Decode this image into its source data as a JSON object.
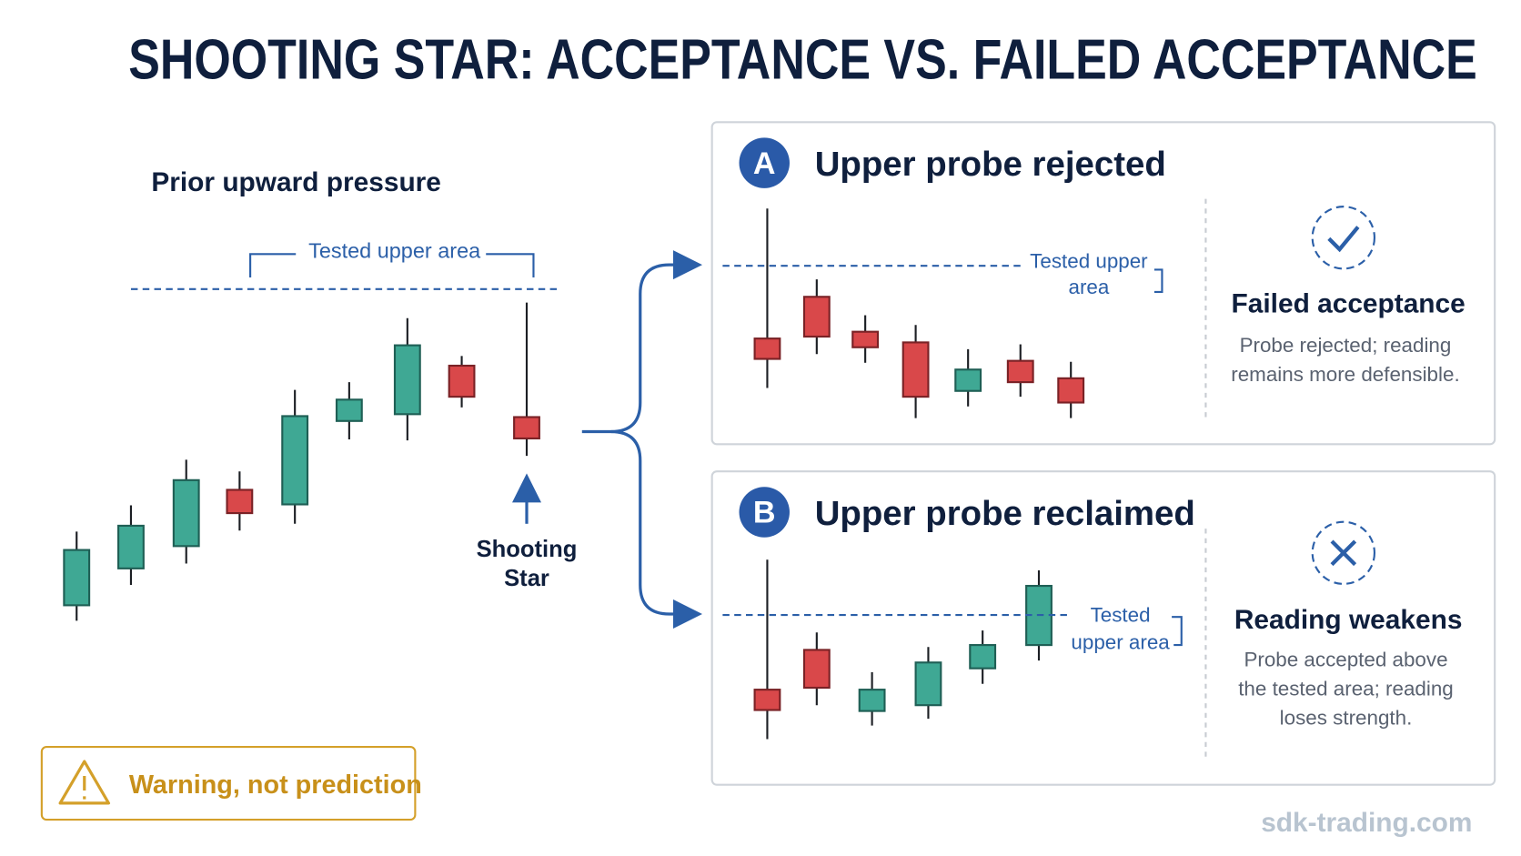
{
  "header": {
    "title": "SHOOTING STAR: ACCEPTANCE VS. FAILED ACCEPTANCE"
  },
  "setup": {
    "subtitle": "Prior upward pressure",
    "level_label": "Tested upper area",
    "candle_label": "Shooting Star"
  },
  "panels": [
    {
      "badge": "A",
      "title": "Upper probe rejected",
      "level_label": "Tested upper area",
      "outcome": "Failed acceptance",
      "description": "Probe rejected; reading remains more defensible."
    },
    {
      "badge": "B",
      "title": "Upper probe reclaimed",
      "level_label": "Tested upper area",
      "outcome": "Reading weakens",
      "description": "Probe accepted above the tested area; reading loses strength."
    }
  ],
  "warning": "Warning, not prediction",
  "watermark": "sdk-trading.com"
}
